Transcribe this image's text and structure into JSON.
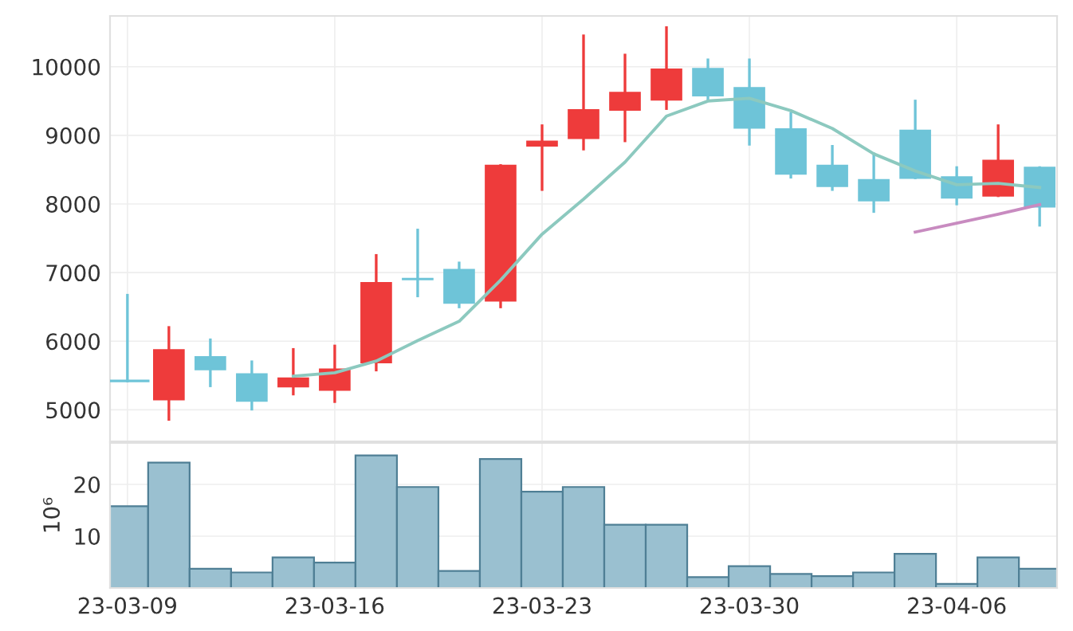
{
  "chart_data": [
    {
      "type": "candlestick",
      "categories": [
        null,
        null,
        null,
        null,
        null,
        null,
        null,
        null,
        null,
        null,
        null,
        null,
        null,
        null,
        null,
        null,
        null,
        null,
        null,
        null,
        null,
        null,
        null
      ],
      "grid": true,
      "ohlc": [
        [
          5420,
          6670,
          5420,
          5420
        ],
        [
          5150,
          6200,
          4860,
          5870
        ],
        [
          5770,
          6020,
          5350,
          5590
        ],
        [
          5520,
          5700,
          5010,
          5130
        ],
        [
          5340,
          5880,
          5230,
          5460
        ],
        [
          5290,
          5930,
          5120,
          5590
        ],
        [
          5690,
          7250,
          5580,
          6850
        ],
        [
          6910,
          7620,
          6660,
          6900
        ],
        [
          7040,
          7140,
          6500,
          6560
        ],
        [
          6590,
          8560,
          6500,
          8560
        ],
        [
          8850,
          9140,
          8210,
          8910
        ],
        [
          8960,
          10450,
          8800,
          9370
        ],
        [
          9370,
          10170,
          8920,
          9620
        ],
        [
          9520,
          10570,
          9390,
          9960
        ],
        [
          9970,
          10100,
          9520,
          9580
        ],
        [
          9690,
          10100,
          8870,
          9110
        ],
        [
          9090,
          9320,
          8390,
          8440
        ],
        [
          8560,
          8840,
          8210,
          8260
        ],
        [
          8350,
          8730,
          7890,
          8050
        ],
        [
          9070,
          9500,
          8380,
          8380
        ],
        [
          8390,
          8530,
          8000,
          8090
        ],
        [
          8120,
          9140,
          8120,
          8630
        ],
        [
          8530,
          8530,
          7690,
          7960
        ]
      ],
      "colors": [
        "#6ec4d8",
        "#ee3b3b",
        "#6ec4d8",
        "#6ec4d8",
        "#ee3b3b",
        "#ee3b3b",
        "#ee3b3b",
        "#6ec4d8",
        "#6ec4d8",
        "#ee3b3b",
        "#ee3b3b",
        "#ee3b3b",
        "#ee3b3b",
        "#ee3b3b",
        "#6ec4d8",
        "#6ec4d8",
        "#6ec4d8",
        "#6ec4d8",
        "#6ec4d8",
        "#6ec4d8",
        "#6ec4d8",
        "#ee3b3b",
        "#6ec4d8"
      ],
      "series": [
        {
          "type": "line",
          "color": "#8cc9bf",
          "values": [
            null,
            null,
            null,
            null,
            5490,
            5540,
            5710,
            6010,
            6290,
            6890,
            7560,
            8070,
            8610,
            9280,
            9500,
            9540,
            9360,
            9100,
            8730,
            8480,
            8280,
            8300,
            8240
          ]
        },
        {
          "type": "line",
          "color": "#c88bc0",
          "values": [
            null,
            null,
            null,
            null,
            null,
            null,
            null,
            null,
            null,
            null,
            null,
            null,
            null,
            null,
            null,
            null,
            null,
            null,
            null,
            7590,
            7720,
            7850,
            7990
          ]
        }
      ],
      "ylim": [
        4540,
        10740
      ],
      "yticks": [
        5000,
        6000,
        7000,
        8000,
        9000,
        10000
      ],
      "tick_labels": "y"
    },
    {
      "type": "bar",
      "categories": [
        "23-03-09",
        null,
        null,
        null,
        null,
        "23-03-16",
        null,
        null,
        null,
        null,
        "23-03-23",
        null,
        null,
        null,
        null,
        "23-03-30",
        null,
        null,
        null,
        null,
        "23-04-06",
        null,
        null
      ],
      "values": [
        15.8,
        24.2,
        3.7,
        3.0,
        5.9,
        4.9,
        25.6,
        19.5,
        3.3,
        24.9,
        18.6,
        19.5,
        12.2,
        12.2,
        2.1,
        4.2,
        2.7,
        2.3,
        3.0,
        6.6,
        0.8,
        5.9,
        3.7
      ],
      "color": "#9ac0d0",
      "grid": true,
      "ylabel": "10⁶",
      "ylim": [
        0,
        28
      ],
      "yticks": [
        10,
        20
      ]
    }
  ]
}
